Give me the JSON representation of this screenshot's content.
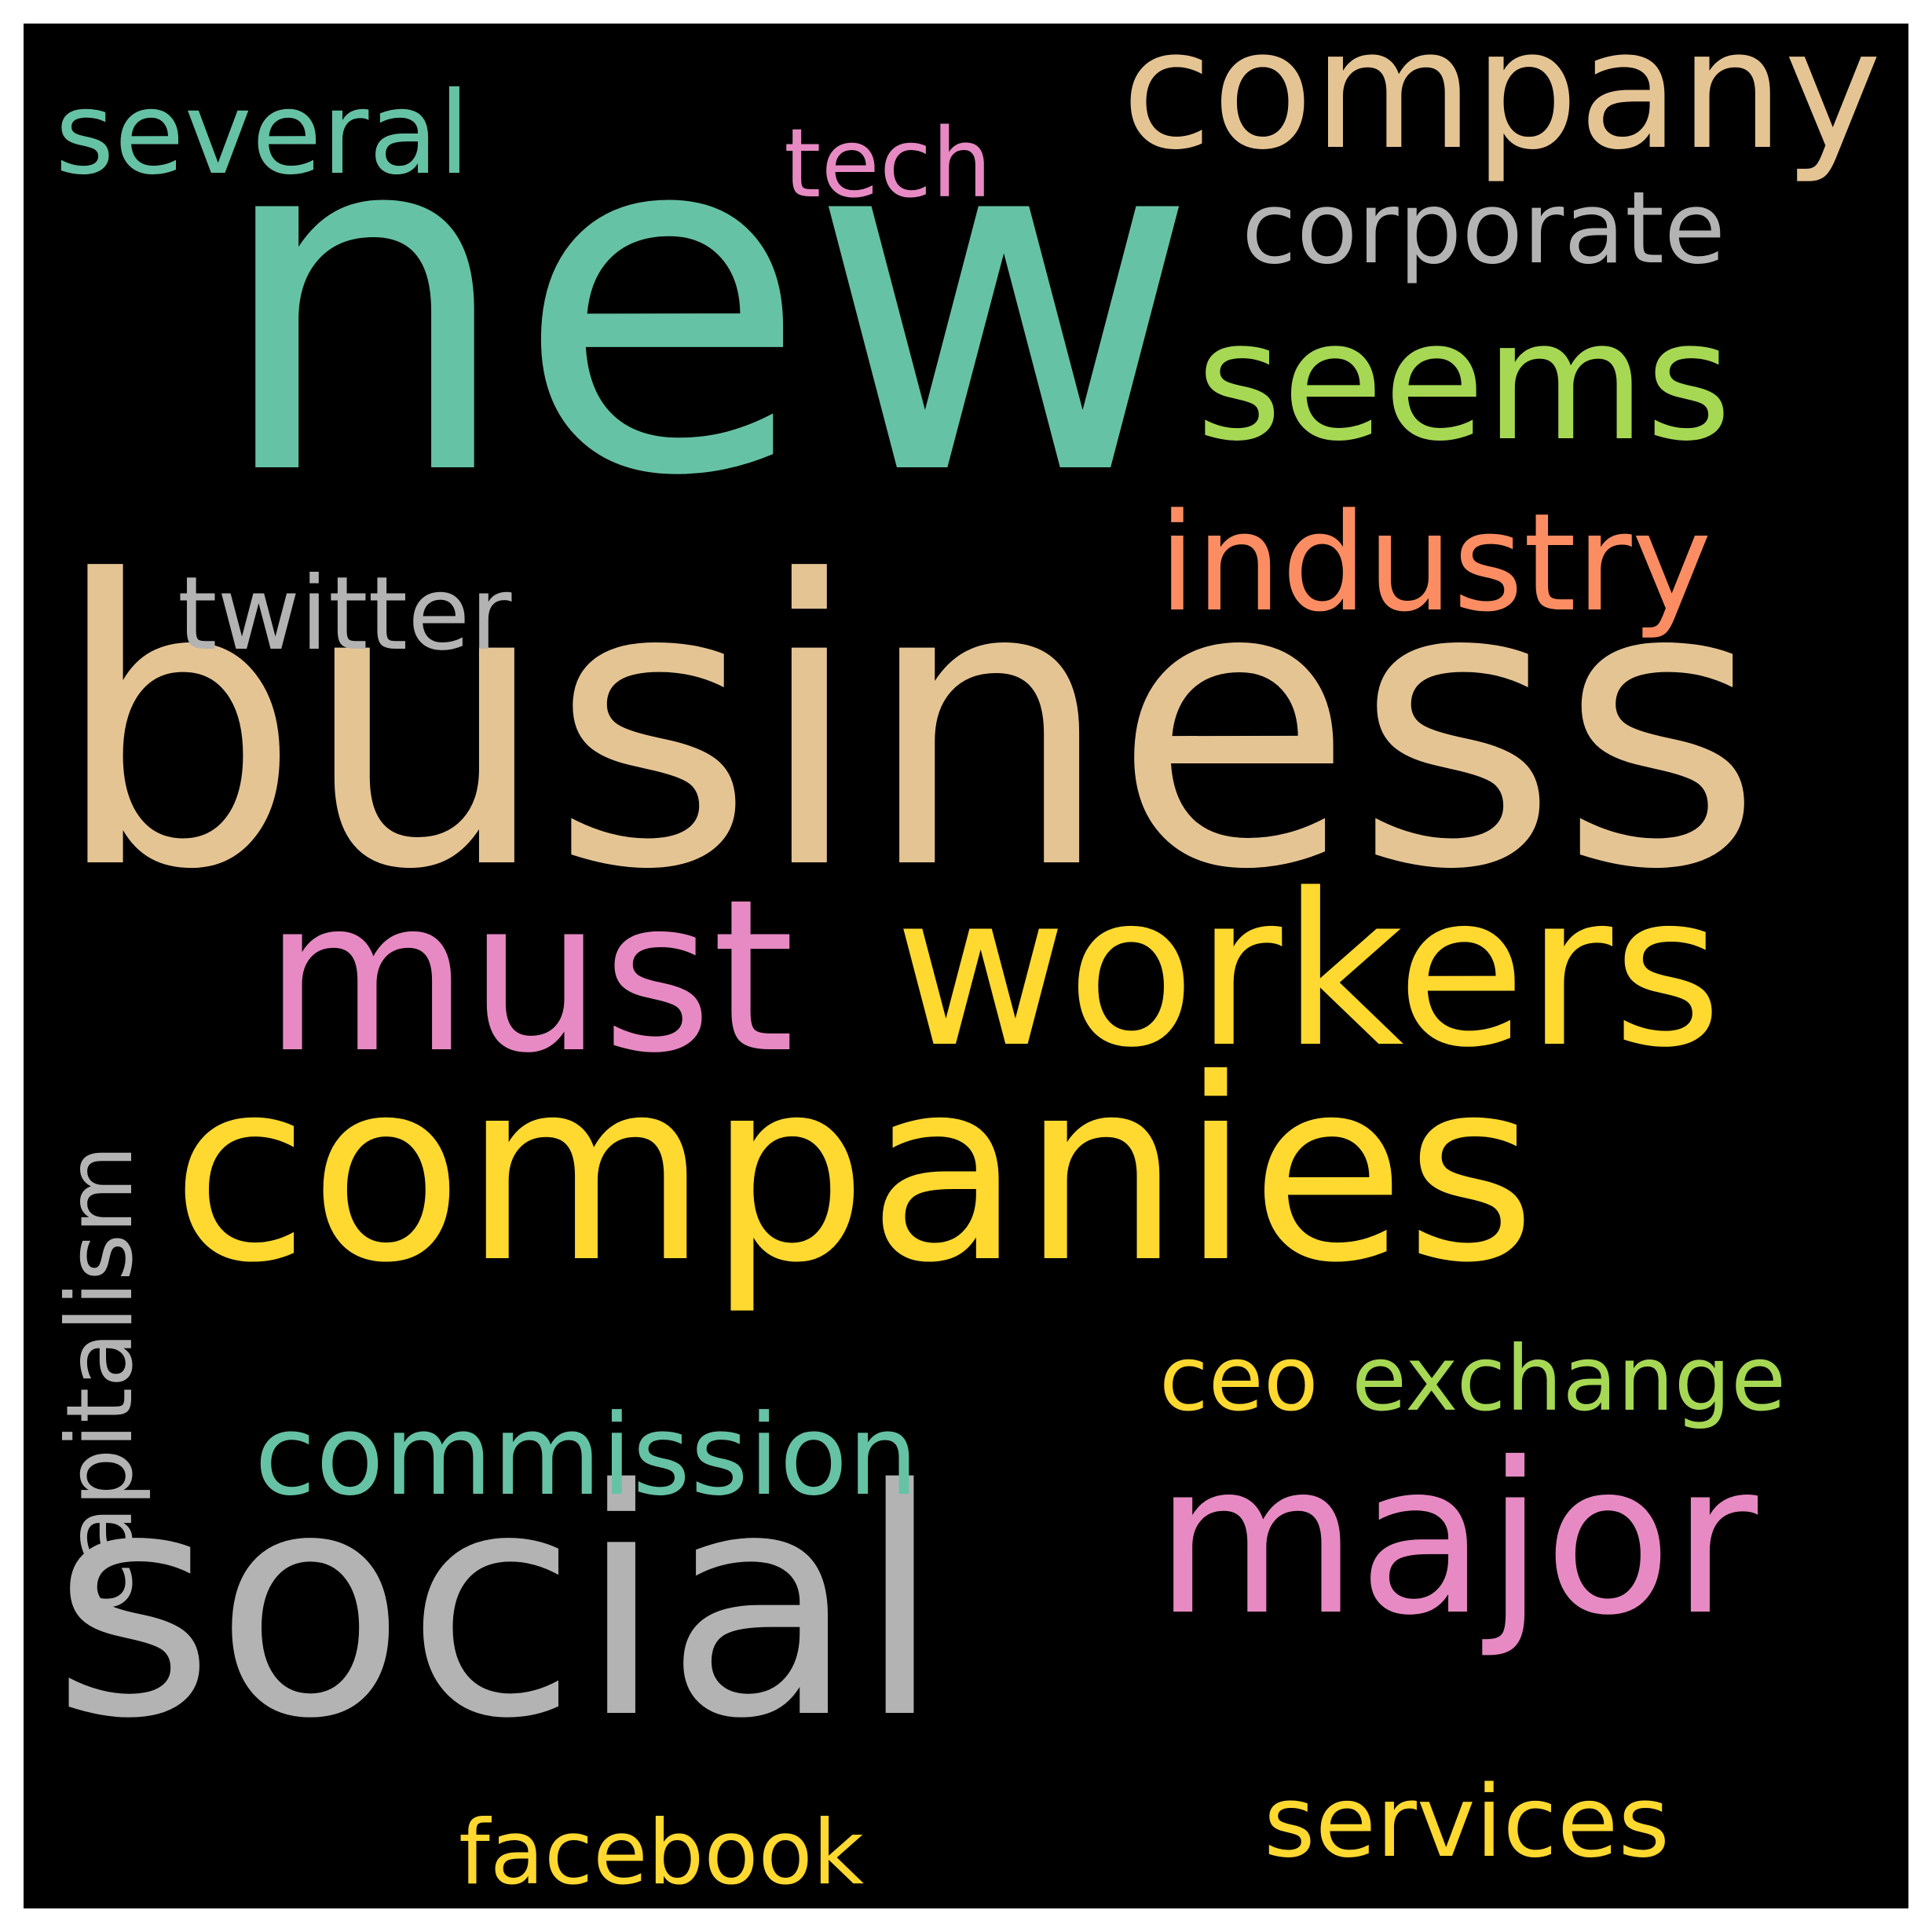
{
  "background": "#000000",
  "palette": {
    "teal": "#66c2a5",
    "tan": "#e5c494",
    "pink": "#e78ac3",
    "lime": "#a6d854",
    "yellow": "#ffd92f",
    "gray": "#b3b3b3",
    "salmon": "#fc8d62"
  },
  "words": [
    {
      "id": "new",
      "text": "new",
      "color": "#66c2a5"
    },
    {
      "id": "business",
      "text": "business",
      "color": "#e5c494"
    },
    {
      "id": "companies",
      "text": "companies",
      "color": "#ffd92f"
    },
    {
      "id": "social",
      "text": "social",
      "color": "#b3b3b3"
    },
    {
      "id": "must",
      "text": "must",
      "color": "#e78ac3"
    },
    {
      "id": "workers",
      "text": "workers",
      "color": "#ffd92f"
    },
    {
      "id": "major",
      "text": "major",
      "color": "#e78ac3"
    },
    {
      "id": "company",
      "text": "company",
      "color": "#e5c494"
    },
    {
      "id": "seems",
      "text": "seems",
      "color": "#a6d854"
    },
    {
      "id": "industry",
      "text": "industry",
      "color": "#fc8d62"
    },
    {
      "id": "several",
      "text": "several",
      "color": "#66c2a5"
    },
    {
      "id": "commission",
      "text": "commission",
      "color": "#66c2a5"
    },
    {
      "id": "twitter",
      "text": "twitter",
      "color": "#b3b3b3"
    },
    {
      "id": "corporate",
      "text": "corporate",
      "color": "#b3b3b3"
    },
    {
      "id": "services",
      "text": "services",
      "color": "#ffd92f"
    },
    {
      "id": "tech",
      "text": "tech",
      "color": "#e78ac3"
    },
    {
      "id": "capitalism",
      "text": "capitalism",
      "color": "#b3b3b3"
    },
    {
      "id": "exchange",
      "text": "exchange",
      "color": "#a6d854"
    },
    {
      "id": "facebook",
      "text": "facebook",
      "color": "#ffd92f"
    },
    {
      "id": "ceo",
      "text": "ceo",
      "color": "#ffd92f"
    }
  ]
}
